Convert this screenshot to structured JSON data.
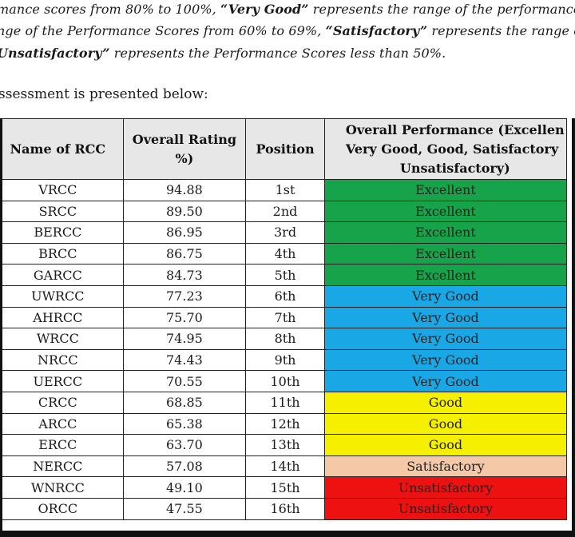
{
  "paragraph": {
    "line1": [
      {
        "t": "mance scores from 80% to 100%, ",
        "b": false
      },
      {
        "t": "“Very Good”",
        "b": true
      },
      {
        "t": " represents the range of the performance sc",
        "b": false
      }
    ],
    "line2": [
      {
        "t": "nge of the Performance Scores from 60% to 69%, ",
        "b": false
      },
      {
        "t": "“Satisfactory”",
        "b": true
      },
      {
        "t": " represents the range of",
        "b": false
      }
    ],
    "line3": [
      {
        "t": "Unsatisfactory”",
        "b": true
      },
      {
        "t": " represents the Performance Scores less than 50%.",
        "b": false
      }
    ]
  },
  "intro": "ssessment is presented below:",
  "table": {
    "headers": {
      "name": "Name of RCC",
      "rating_line1": "Overall Rating",
      "rating_line2": "%)",
      "position": "Position",
      "perf_line1": "Overall Performance (Excellen",
      "perf_line2": "Very Good, Good, Satisfactory",
      "perf_line3": "Unsatisfactory)"
    },
    "rows": [
      {
        "name": "VRCC",
        "rating": "94.88",
        "position": "1st",
        "performance": "Excellent"
      },
      {
        "name": "SRCC",
        "rating": "89.50",
        "position": "2nd",
        "performance": "Excellent"
      },
      {
        "name": "BERCC",
        "rating": "86.95",
        "position": "3rd",
        "performance": "Excellent"
      },
      {
        "name": "BRCC",
        "rating": "86.75",
        "position": "4th",
        "performance": "Excellent"
      },
      {
        "name": "GARCC",
        "rating": "84.73",
        "position": "5th",
        "performance": "Excellent"
      },
      {
        "name": "UWRCC",
        "rating": "77.23",
        "position": "6th",
        "performance": "Very Good"
      },
      {
        "name": "AHRCC",
        "rating": "75.70",
        "position": "7th",
        "performance": "Very Good"
      },
      {
        "name": "WRCC",
        "rating": "74.95",
        "position": "8th",
        "performance": "Very Good"
      },
      {
        "name": "NRCC",
        "rating": "74.43",
        "position": "9th",
        "performance": "Very Good"
      },
      {
        "name": "UERCC",
        "rating": "70.55",
        "position": "10th",
        "performance": "Very Good"
      },
      {
        "name": "CRCC",
        "rating": "68.85",
        "position": "11th",
        "performance": "Good"
      },
      {
        "name": "ARCC",
        "rating": "65.38",
        "position": "12th",
        "performance": "Good"
      },
      {
        "name": "ERCC",
        "rating": "63.70",
        "position": "13th",
        "performance": "Good"
      },
      {
        "name": "NERCC",
        "rating": "57.08",
        "position": "14th",
        "performance": "Satisfactory"
      },
      {
        "name": "WNRCC",
        "rating": "49.10",
        "position": "15th",
        "performance": "Unsatisfactory"
      },
      {
        "name": "ORCC",
        "rating": "47.55",
        "position": "16th",
        "performance": "Unsatisfactory"
      }
    ]
  },
  "colors": {
    "Excellent": "#17a34a",
    "Very Good": "#1aa7e6",
    "Good": "#f5f000",
    "Satisfactory": "#f5c9a8",
    "Unsatisfactory": "#ee1111",
    "header_bg": "#e7e7e7"
  }
}
